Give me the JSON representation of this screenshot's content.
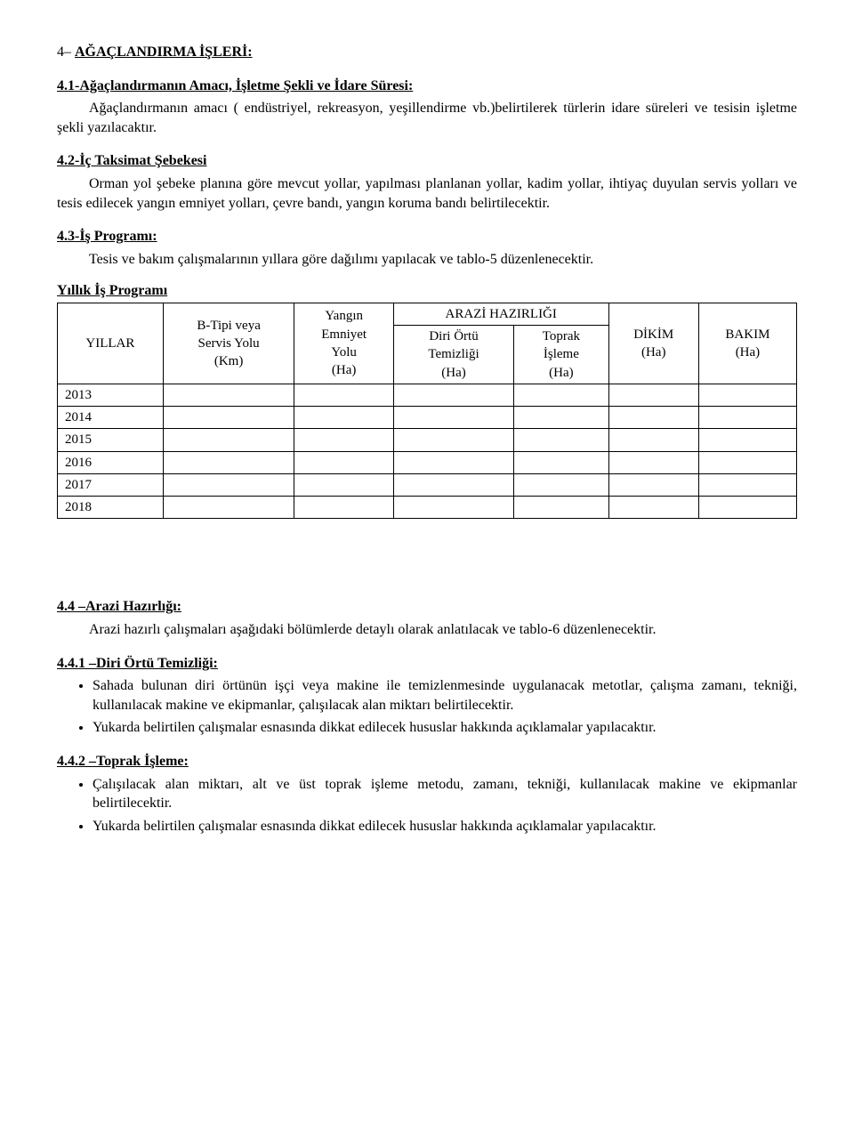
{
  "section4": {
    "prefix": "4– ",
    "title": "AĞAÇLANDIRMA İŞLERİ:"
  },
  "s41": {
    "title": "4.1-Ağaçlandırmanın Amacı, İşletme Şekli ve İdare Süresi:",
    "para": "Ağaçlandırmanın amacı ( endüstriyel, rekreasyon, yeşillendirme vb.)belirtilerek türlerin idare süreleri ve tesisin işletme şekli yazılacaktır."
  },
  "s42": {
    "title": "4.2-İç Taksimat Şebekesi",
    "para": "Orman yol şebeke planına göre mevcut yollar, yapılması planlanan yollar, kadim yollar, ihtiyaç duyulan servis yolları ve tesis edilecek yangın emniyet yolları, çevre bandı, yangın koruma bandı belirtilecektir."
  },
  "s43": {
    "title": "4.3-İş Programı:",
    "para": "Tesis ve bakım çalışmalarının yıllara göre dağılımı yapılacak ve tablo-5 düzenlenecektir."
  },
  "program_table": {
    "title": "Yıllık İş Programı",
    "headers": {
      "col_yillar": "YILLAR",
      "col_btipi_l1": "B-Tipi veya",
      "col_btipi_l2": "Servis Yolu",
      "col_btipi_l3": "(Km)",
      "col_yangin_l1": "Yangın",
      "col_yangin_l2": "Emniyet",
      "col_yangin_l3": "Yolu",
      "col_yangin_l4": "(Ha)",
      "group_arazi": "ARAZİ HAZIRLIĞI",
      "col_diri_l1": "Diri Örtü",
      "col_diri_l2": "Temizliği",
      "col_diri_l3": "(Ha)",
      "col_toprak_l1": "Toprak",
      "col_toprak_l2": "İşleme",
      "col_toprak_l3": "(Ha)",
      "col_dikim_l1": "DİKİM",
      "col_dikim_l2": "(Ha)",
      "col_bakim_l1": "BAKIM",
      "col_bakim_l2": "(Ha)"
    },
    "years": [
      "2013",
      "2014",
      "2015",
      "2016",
      "2017",
      "2018"
    ]
  },
  "s44": {
    "title": "4.4 –Arazi Hazırlığı:",
    "para": "Arazi hazırlı çalışmaları aşağıdaki bölümlerde detaylı olarak anlatılacak ve tablo-6 düzenlenecektir."
  },
  "s441": {
    "title": "4.4.1 –Diri Örtü Temizliği:",
    "b1": "Sahada bulunan diri örtünün işçi veya makine ile temizlenmesinde uygulanacak metotlar, çalışma zamanı, tekniği, kullanılacak makine ve ekipmanlar, çalışılacak alan miktarı belirtilecektir.",
    "b2": "Yukarda belirtilen çalışmalar esnasında dikkat edilecek hususlar hakkında açıklamalar yapılacaktır."
  },
  "s442": {
    "title": "4.4.2 –Toprak İşleme:",
    "b1": "Çalışılacak alan miktarı, alt ve üst toprak işleme metodu, zamanı, tekniği, kullanılacak makine ve ekipmanlar belirtilecektir.",
    "b2": "Yukarda belirtilen çalışmalar esnasında dikkat edilecek hususlar hakkında açıklamalar yapılacaktır."
  }
}
